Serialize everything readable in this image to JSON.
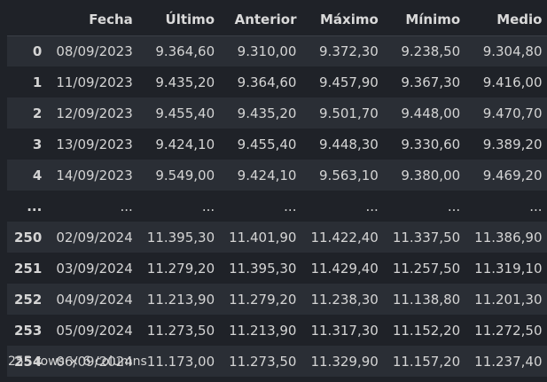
{
  "table": {
    "columns": [
      "",
      "Fecha",
      "Último",
      "Anterior",
      "Máximo",
      "Mínimo",
      "Medio"
    ],
    "rows": [
      [
        "0",
        "08/09/2023",
        "9.364,60",
        "9.310,00",
        "9.372,30",
        "9.238,50",
        "9.304,80"
      ],
      [
        "1",
        "11/09/2023",
        "9.435,20",
        "9.364,60",
        "9.457,90",
        "9.367,30",
        "9.416,00"
      ],
      [
        "2",
        "12/09/2023",
        "9.455,40",
        "9.435,20",
        "9.501,70",
        "9.448,00",
        "9.470,70"
      ],
      [
        "3",
        "13/09/2023",
        "9.424,10",
        "9.455,40",
        "9.448,30",
        "9.330,60",
        "9.389,20"
      ],
      [
        "4",
        "14/09/2023",
        "9.549,00",
        "9.424,10",
        "9.563,10",
        "9.380,00",
        "9.469,20"
      ],
      [
        "...",
        "...",
        "...",
        "...",
        "...",
        "...",
        "..."
      ],
      [
        "250",
        "02/09/2024",
        "11.395,30",
        "11.401,90",
        "11.422,40",
        "11.337,50",
        "11.386,90"
      ],
      [
        "251",
        "03/09/2024",
        "11.279,20",
        "11.395,30",
        "11.429,40",
        "11.257,50",
        "11.319,10"
      ],
      [
        "252",
        "04/09/2024",
        "11.213,90",
        "11.279,20",
        "11.238,30",
        "11.138,80",
        "11.201,30"
      ],
      [
        "253",
        "05/09/2024",
        "11.273,50",
        "11.213,90",
        "11.317,30",
        "11.152,20",
        "11.272,50"
      ],
      [
        "254",
        "06/09/2024",
        "11.173,00",
        "11.273,50",
        "11.329,90",
        "11.157,20",
        "11.237,40"
      ]
    ]
  },
  "summary": "255 rows × 6 columns"
}
